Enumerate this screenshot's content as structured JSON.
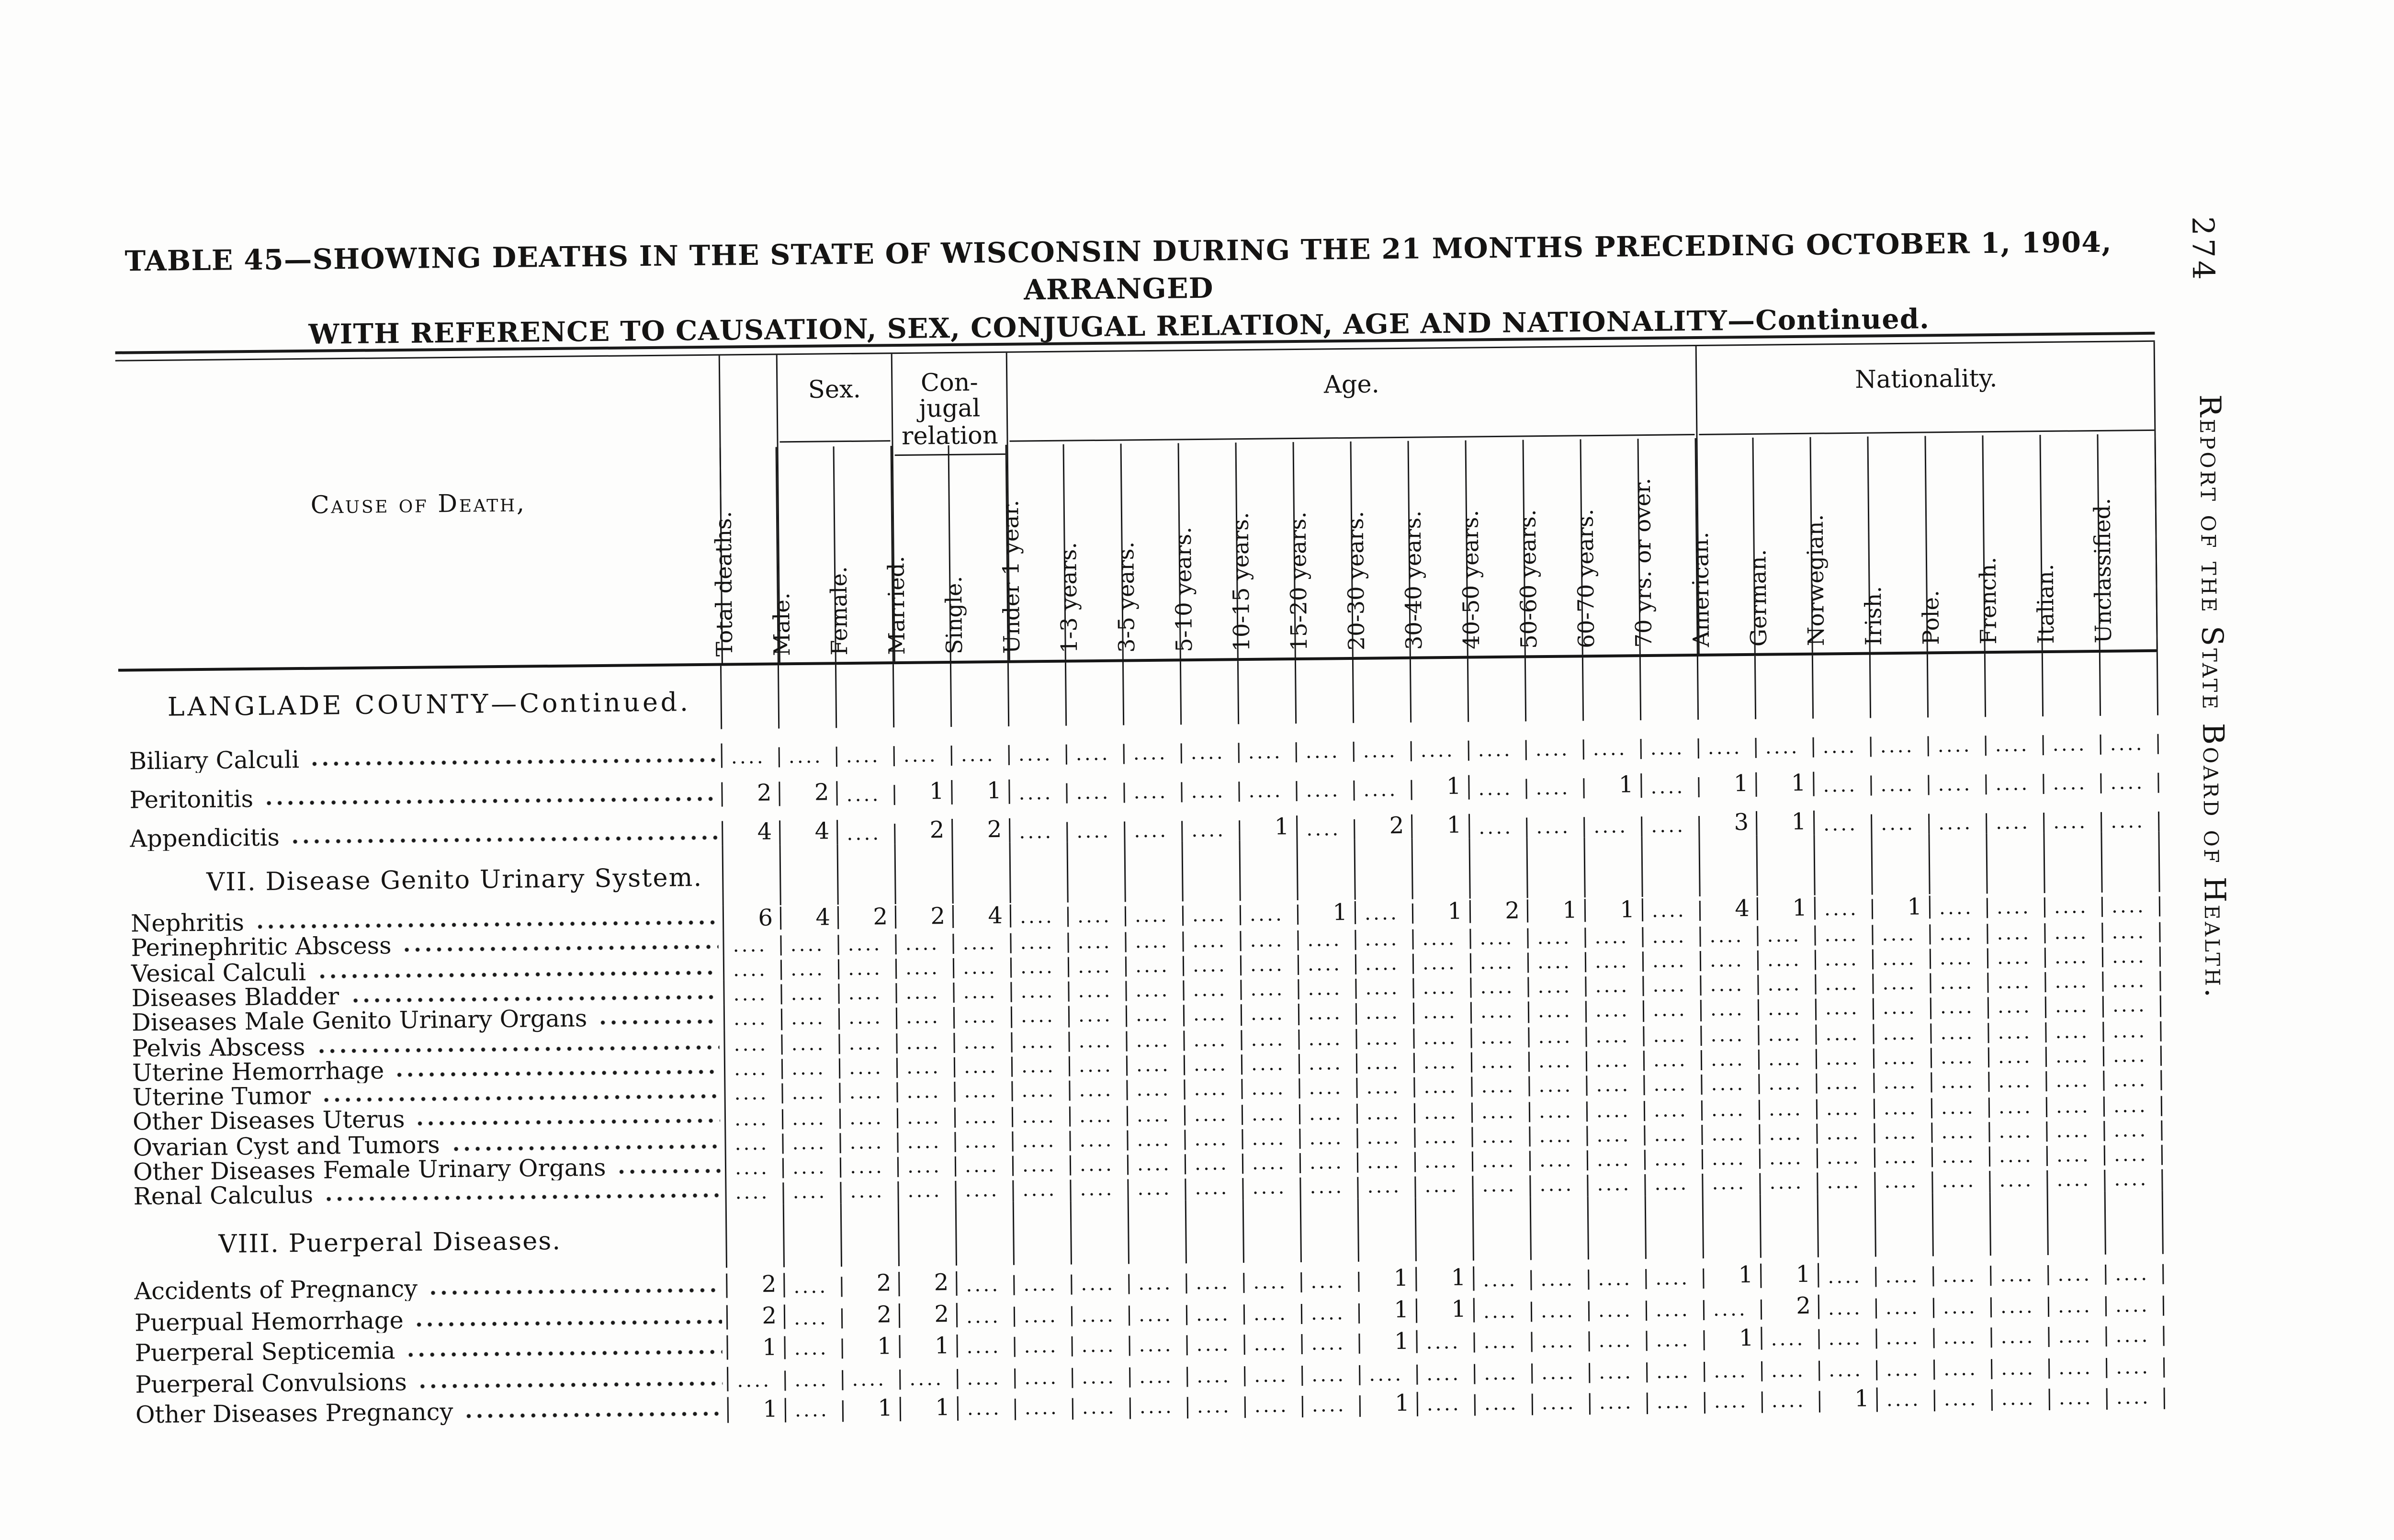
{
  "page": {
    "title_line1": "TABLE 45—SHOWING DEATHS IN THE STATE OF WISCONSIN DURING THE 21 MONTHS PRECEDING OCTOBER 1, 1904, ARRANGED",
    "title_line2": "WITH REFERENCE TO CAUSATION, SEX, CONJUGAL RELATION, AGE AND NATIONALITY—Continued.",
    "page_number": "274",
    "margin_note": "Report of the State Board of Health."
  },
  "table": {
    "cause_of_death_header": "Cause of Death,",
    "group_headers": {
      "sex": "Sex.",
      "conjugal_lines": [
        "Con-",
        "jugal",
        "relation"
      ],
      "age": "Age.",
      "nationality": "Nationality."
    },
    "columns": [
      "Total deaths.",
      "Male.",
      "Female.",
      "Married.",
      "Single.",
      "Under 1 year.",
      "1-3 years.",
      "3-5 years.",
      "5-10 years.",
      "10-15 years.",
      "15-20 years.",
      "20-30 years.",
      "30-40 years.",
      "40-50 years.",
      "50-60 years.",
      "60-70 years.",
      "70 yrs. or over.",
      "American.",
      "German.",
      "Norwegian.",
      "Irish.",
      "Pole.",
      "French.",
      "Italian.",
      "Unclassified."
    ],
    "empty_cell": "....",
    "sections": [
      {
        "heading": "LANGLADE COUNTY—Continued.",
        "rows": [
          {
            "label": "Biliary Calculi",
            "values": [
              "",
              "",
              "",
              "",
              "",
              "",
              "",
              "",
              "",
              "",
              "",
              "",
              "",
              "",
              "",
              "",
              "",
              "",
              "",
              "",
              "",
              "",
              "",
              "",
              ""
            ]
          },
          {
            "label": "Peritonitis",
            "values": [
              "2",
              "2",
              "",
              "1",
              "1",
              "",
              "",
              "",
              "",
              "",
              "",
              "",
              "1",
              "",
              "",
              "1",
              "",
              "1",
              "1",
              "",
              "",
              "",
              "",
              "",
              ""
            ]
          },
          {
            "label": "Appendicitis",
            "values": [
              "4",
              "4",
              "",
              "2",
              "2",
              "",
              "",
              "",
              "",
              "1",
              "",
              "2",
              "1",
              "",
              "",
              "",
              "",
              "3",
              "1",
              "",
              "",
              "",
              "",
              "",
              ""
            ]
          }
        ]
      },
      {
        "heading": "VII. Disease Genito Urinary System.",
        "rows": [
          {
            "label": "Nephritis",
            "values": [
              "6",
              "4",
              "2",
              "2",
              "4",
              "",
              "",
              "",
              "",
              "",
              "1",
              "",
              "1",
              "2",
              "1",
              "1",
              "",
              "4",
              "1",
              "",
              "1",
              "",
              "",
              "",
              ""
            ]
          },
          {
            "label": "Perinephritic Abscess",
            "values": [
              "",
              "",
              "",
              "",
              "",
              "",
              "",
              "",
              "",
              "",
              "",
              "",
              "",
              "",
              "",
              "",
              "",
              "",
              "",
              "",
              "",
              "",
              "",
              "",
              ""
            ]
          },
          {
            "label": "Vesical Calculi",
            "values": [
              "",
              "",
              "",
              "",
              "",
              "",
              "",
              "",
              "",
              "",
              "",
              "",
              "",
              "",
              "",
              "",
              "",
              "",
              "",
              "",
              "",
              "",
              "",
              "",
              ""
            ]
          },
          {
            "label": "Diseases Bladder",
            "values": [
              "",
              "",
              "",
              "",
              "",
              "",
              "",
              "",
              "",
              "",
              "",
              "",
              "",
              "",
              "",
              "",
              "",
              "",
              "",
              "",
              "",
              "",
              "",
              "",
              ""
            ]
          },
          {
            "label": "Diseases Male Genito Urinary Organs",
            "values": [
              "",
              "",
              "",
              "",
              "",
              "",
              "",
              "",
              "",
              "",
              "",
              "",
              "",
              "",
              "",
              "",
              "",
              "",
              "",
              "",
              "",
              "",
              "",
              "",
              ""
            ]
          },
          {
            "label": "Pelvis Abscess",
            "values": [
              "",
              "",
              "",
              "",
              "",
              "",
              "",
              "",
              "",
              "",
              "",
              "",
              "",
              "",
              "",
              "",
              "",
              "",
              "",
              "",
              "",
              "",
              "",
              "",
              ""
            ]
          },
          {
            "label": "Uterine Hemorrhage",
            "values": [
              "",
              "",
              "",
              "",
              "",
              "",
              "",
              "",
              "",
              "",
              "",
              "",
              "",
              "",
              "",
              "",
              "",
              "",
              "",
              "",
              "",
              "",
              "",
              "",
              ""
            ]
          },
          {
            "label": "Uterine Tumor",
            "values": [
              "",
              "",
              "",
              "",
              "",
              "",
              "",
              "",
              "",
              "",
              "",
              "",
              "",
              "",
              "",
              "",
              "",
              "",
              "",
              "",
              "",
              "",
              "",
              "",
              ""
            ]
          },
          {
            "label": "Other Diseases Uterus",
            "values": [
              "",
              "",
              "",
              "",
              "",
              "",
              "",
              "",
              "",
              "",
              "",
              "",
              "",
              "",
              "",
              "",
              "",
              "",
              "",
              "",
              "",
              "",
              "",
              "",
              ""
            ]
          },
          {
            "label": "Ovarian Cyst and Tumors",
            "values": [
              "",
              "",
              "",
              "",
              "",
              "",
              "",
              "",
              "",
              "",
              "",
              "",
              "",
              "",
              "",
              "",
              "",
              "",
              "",
              "",
              "",
              "",
              "",
              "",
              ""
            ]
          },
          {
            "label": "Other Diseases Female Urinary Organs",
            "values": [
              "",
              "",
              "",
              "",
              "",
              "",
              "",
              "",
              "",
              "",
              "",
              "",
              "",
              "",
              "",
              "",
              "",
              "",
              "",
              "",
              "",
              "",
              "",
              "",
              ""
            ]
          },
          {
            "label": "Renal Calculus",
            "values": [
              "",
              "",
              "",
              "",
              "",
              "",
              "",
              "",
              "",
              "",
              "",
              "",
              "",
              "",
              "",
              "",
              "",
              "",
              "",
              "",
              "",
              "",
              "",
              "",
              ""
            ]
          }
        ]
      },
      {
        "heading": "VIII. Puerperal Diseases.",
        "rows": [
          {
            "label": "Accidents of Pregnancy",
            "values": [
              "2",
              "",
              "2",
              "2",
              "",
              "",
              "",
              "",
              "",
              "",
              "",
              "1",
              "1",
              "",
              "",
              "",
              "",
              "1",
              "1",
              "",
              "",
              "",
              "",
              "",
              ""
            ]
          },
          {
            "label": "Puerpual Hemorrhage",
            "values": [
              "2",
              "",
              "2",
              "2",
              "",
              "",
              "",
              "",
              "",
              "",
              "",
              "1",
              "1",
              "",
              "",
              "",
              "",
              "",
              "2",
              "",
              "",
              "",
              "",
              "",
              ""
            ]
          },
          {
            "label": "Puerperal Septicemia",
            "values": [
              "1",
              "",
              "1",
              "1",
              "",
              "",
              "",
              "",
              "",
              "",
              "",
              "1",
              "",
              "",
              "",
              "",
              "",
              "1",
              "",
              "",
              "",
              "",
              "",
              "",
              ""
            ]
          },
          {
            "label": "Puerperal Convulsions",
            "values": [
              "",
              "",
              "",
              "",
              "",
              "",
              "",
              "",
              "",
              "",
              "",
              "",
              "",
              "",
              "",
              "",
              "",
              "",
              "",
              "",
              "",
              "",
              "",
              "",
              ""
            ]
          },
          {
            "label": "Other Diseases Pregnancy",
            "values": [
              "1",
              "",
              "1",
              "1",
              "",
              "",
              "",
              "",
              "",
              "",
              "",
              "1",
              "",
              "",
              "",
              "",
              "",
              "",
              "",
              "1",
              "",
              "",
              "",
              "",
              ""
            ]
          }
        ]
      }
    ]
  }
}
